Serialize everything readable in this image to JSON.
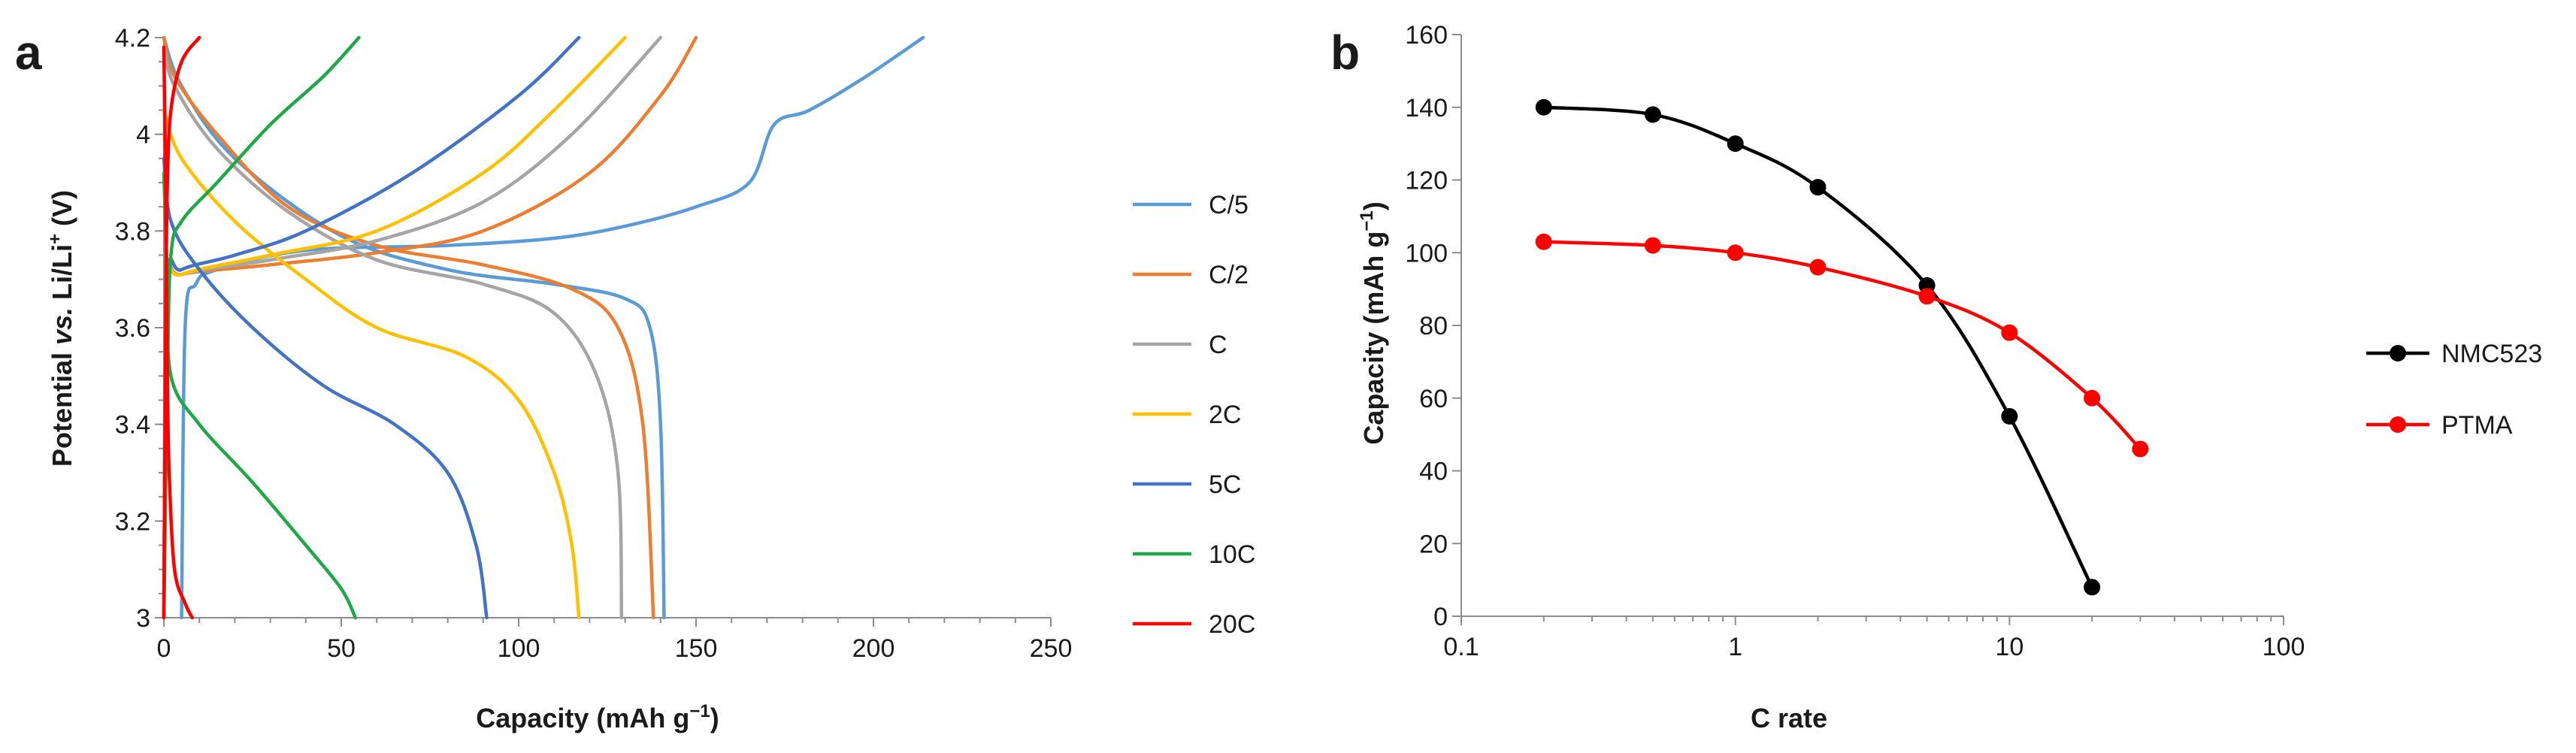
{
  "colors": {
    "C/5": "#5b9bd5",
    "C/2": "#ed7d31",
    "C": "#a5a5a5",
    "2C": "#ffc000",
    "5C": "#4472c4",
    "10C": "#1fa847",
    "20C": "#ff0000",
    "NMC523": "#000000",
    "PTMA": "#ff0000",
    "axis": "#8c8c8c"
  },
  "chart_data": [
    {
      "panel": "a",
      "type": "line",
      "xlabel_main": "Capacity (mAh g",
      "xlabel_sup": "−1",
      "xlabel_tail": ")",
      "ylabel_prefix": "Potential ",
      "ylabel_vs": "vs.",
      "ylabel_mid": " Li/Li",
      "ylabel_sup": "+",
      "ylabel_tail": " (V)",
      "xlim": [
        0,
        250
      ],
      "ylim": [
        3.0,
        4.2
      ],
      "xticks": [
        "0",
        "50",
        "100",
        "150",
        "200",
        "250"
      ],
      "yticks": [
        "3",
        "3.2",
        "3.4",
        "3.6",
        "3.8",
        "4",
        "4.2"
      ],
      "legend": [
        "C/5",
        "C/2",
        "C",
        "2C",
        "5C",
        "10C",
        "20C"
      ],
      "series": [
        {
          "name": "C/5",
          "charge": [
            [
              5,
              3.0
            ],
            [
              6,
              3.6
            ],
            [
              9,
              3.69
            ],
            [
              15,
              3.72
            ],
            [
              40,
              3.76
            ],
            [
              80,
              3.77
            ],
            [
              110,
              3.785
            ],
            [
              130,
              3.81
            ],
            [
              150,
              3.85
            ],
            [
              165,
              3.9
            ],
            [
              172,
              4.02
            ],
            [
              182,
              4.05
            ],
            [
              198,
              4.12
            ],
            [
              214,
              4.2
            ]
          ],
          "discharge": [
            [
              0,
              4.2
            ],
            [
              5,
              4.1
            ],
            [
              20,
              3.95
            ],
            [
              50,
              3.79
            ],
            [
              80,
              3.72
            ],
            [
              110,
              3.69
            ],
            [
              130,
              3.66
            ],
            [
              137,
              3.6
            ],
            [
              140,
              3.4
            ],
            [
              141,
              3.0
            ]
          ]
        },
        {
          "name": "C/2",
          "charge": [
            [
              0,
              3.0
            ],
            [
              1,
              3.68
            ],
            [
              5,
              3.71
            ],
            [
              30,
              3.73
            ],
            [
              60,
              3.755
            ],
            [
              90,
              3.8
            ],
            [
              120,
              3.92
            ],
            [
              140,
              4.08
            ],
            [
              150,
              4.2
            ]
          ],
          "discharge": [
            [
              0,
              4.2
            ],
            [
              3,
              4.12
            ],
            [
              15,
              4.0
            ],
            [
              35,
              3.85
            ],
            [
              60,
              3.77
            ],
            [
              90,
              3.73
            ],
            [
              115,
              3.68
            ],
            [
              128,
              3.6
            ],
            [
              135,
              3.4
            ],
            [
              138,
              3.0
            ]
          ]
        },
        {
          "name": "C",
          "charge": [
            [
              0,
              3.0
            ],
            [
              1,
              3.68
            ],
            [
              5,
              3.71
            ],
            [
              30,
              3.74
            ],
            [
              60,
              3.78
            ],
            [
              90,
              3.86
            ],
            [
              115,
              4.0
            ],
            [
              140,
              4.2
            ]
          ],
          "discharge": [
            [
              0,
              4.18
            ],
            [
              3,
              4.1
            ],
            [
              15,
              3.97
            ],
            [
              35,
              3.84
            ],
            [
              60,
              3.74
            ],
            [
              90,
              3.69
            ],
            [
              110,
              3.63
            ],
            [
              122,
              3.5
            ],
            [
              128,
              3.3
            ],
            [
              129,
              3.0
            ]
          ]
        },
        {
          "name": "2C",
          "charge": [
            [
              0,
              3.0
            ],
            [
              1,
              3.67
            ],
            [
              5,
              3.71
            ],
            [
              30,
              3.75
            ],
            [
              60,
              3.8
            ],
            [
              90,
              3.92
            ],
            [
              110,
              4.05
            ],
            [
              130,
              4.2
            ]
          ],
          "discharge": [
            [
              0,
              4.05
            ],
            [
              5,
              3.95
            ],
            [
              20,
              3.82
            ],
            [
              40,
              3.7
            ],
            [
              60,
              3.6
            ],
            [
              85,
              3.54
            ],
            [
              100,
              3.45
            ],
            [
              110,
              3.3
            ],
            [
              115,
              3.15
            ],
            [
              117,
              3.0
            ]
          ]
        },
        {
          "name": "5C",
          "charge": [
            [
              0,
              3.0
            ],
            [
              1,
              3.68
            ],
            [
              5,
              3.72
            ],
            [
              20,
              3.75
            ],
            [
              40,
              3.8
            ],
            [
              70,
              3.92
            ],
            [
              100,
              4.08
            ],
            [
              117,
              4.2
            ]
          ],
          "discharge": [
            [
              0,
              3.95
            ],
            [
              2,
              3.82
            ],
            [
              10,
              3.72
            ],
            [
              25,
              3.6
            ],
            [
              45,
              3.48
            ],
            [
              65,
              3.4
            ],
            [
              80,
              3.3
            ],
            [
              88,
              3.15
            ],
            [
              91,
              3.0
            ]
          ]
        },
        {
          "name": "10C",
          "charge": [
            [
              0,
              3.0
            ],
            [
              1,
              3.5
            ],
            [
              2,
              3.75
            ],
            [
              5,
              3.82
            ],
            [
              15,
              3.9
            ],
            [
              30,
              4.02
            ],
            [
              45,
              4.12
            ],
            [
              55,
              4.2
            ]
          ],
          "discharge": [
            [
              0,
              3.92
            ],
            [
              1,
              3.7
            ],
            [
              2,
              3.5
            ],
            [
              10,
              3.4
            ],
            [
              25,
              3.28
            ],
            [
              40,
              3.15
            ],
            [
              50,
              3.06
            ],
            [
              54,
              3.0
            ]
          ]
        },
        {
          "name": "20C",
          "charge": [
            [
              0,
              3.0
            ],
            [
              0.5,
              3.6
            ],
            [
              1,
              3.9
            ],
            [
              2,
              4.05
            ],
            [
              5,
              4.15
            ],
            [
              10,
              4.2
            ]
          ],
          "discharge": [
            [
              0,
              4.18
            ],
            [
              0.5,
              3.9
            ],
            [
              1,
              3.5
            ],
            [
              1.5,
              3.3
            ],
            [
              3,
              3.1
            ],
            [
              6,
              3.03
            ],
            [
              8,
              3.0
            ]
          ]
        }
      ]
    },
    {
      "panel": "b",
      "type": "line",
      "xscale": "log",
      "xlabel": "C rate",
      "ylabel_main": "Capacity (mAh g",
      "ylabel_sup": "−1",
      "ylabel_tail": ")",
      "xlim": [
        0.1,
        100
      ],
      "ylim": [
        0,
        160
      ],
      "xticks": [
        "0.1",
        "1",
        "10",
        "100"
      ],
      "yticks": [
        "0",
        "20",
        "40",
        "60",
        "80",
        "100",
        "120",
        "140",
        "160"
      ],
      "legend": [
        "NMC523",
        "PTMA"
      ],
      "series": [
        {
          "name": "NMC523",
          "x": [
            0.2,
            0.5,
            1,
            2,
            5,
            10,
            20
          ],
          "y": [
            140,
            138,
            130,
            118,
            91,
            55,
            8
          ]
        },
        {
          "name": "PTMA",
          "x": [
            0.2,
            0.5,
            1,
            2,
            5,
            10,
            20,
            30
          ],
          "y": [
            103,
            102,
            100,
            96,
            88,
            78,
            60,
            46
          ]
        }
      ]
    }
  ]
}
